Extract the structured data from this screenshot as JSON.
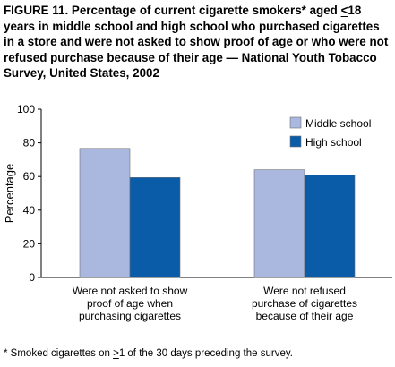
{
  "figure": {
    "title_parts": {
      "before_symbol": "FIGURE 11. Percentage of current cigarette smokers* aged ",
      "symbol": "<",
      "after_symbol": "18 years in middle school and high school who purchased cigarettes in a store and were not asked to show proof of age or who were not refused purchase because of their age — National Youth Tobacco Survey, United States, 2002"
    },
    "footnote_parts": {
      "before_symbol": "* Smoked cigarettes on ",
      "symbol": ">",
      "after_symbol": "1 of the 30 days preceding the survey."
    }
  },
  "chart_data": {
    "type": "bar",
    "ylabel": "Percentage",
    "ylim": [
      0,
      100
    ],
    "yticks": [
      0,
      20,
      40,
      60,
      80,
      100
    ],
    "grid": false,
    "legend_position": "top-right",
    "categories": [
      [
        "Were not asked to show",
        "proof of age when",
        "purchasing cigarettes"
      ],
      [
        "Were not refused",
        "purchase of cigarettes",
        "because of their age"
      ]
    ],
    "series": [
      {
        "name": "Middle school",
        "color": "#aab8e0",
        "values": [
          76.7,
          64.0
        ]
      },
      {
        "name": "High school",
        "color": "#0a5ca8",
        "values": [
          59.4,
          61.0
        ]
      }
    ]
  }
}
